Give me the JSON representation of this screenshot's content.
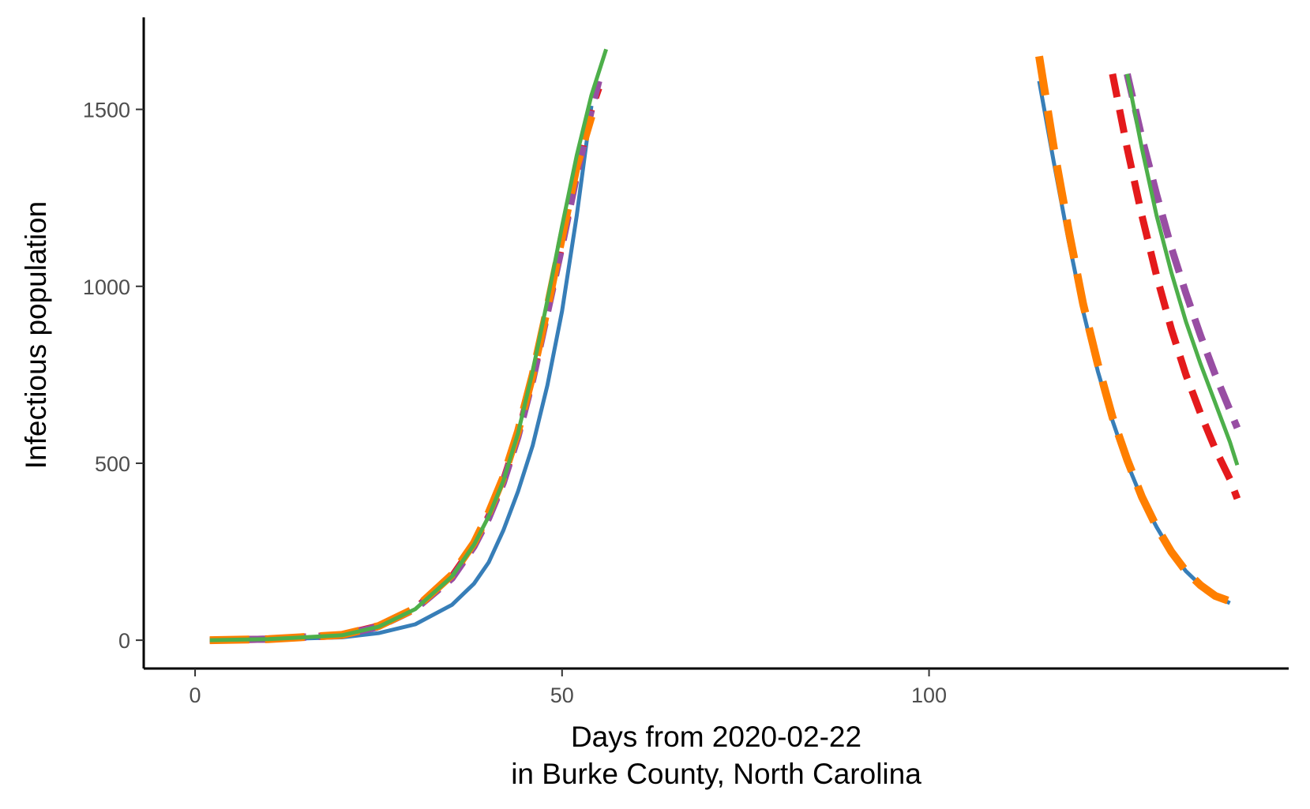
{
  "chart_data": {
    "type": "line",
    "title": "",
    "xlabel_lines": [
      "Days from 2020-02-22",
      "in Burke County, North Carolina"
    ],
    "ylabel": "Infectious population",
    "xlim": [
      -7,
      149
    ],
    "ylim": [
      -80,
      1760
    ],
    "xticks": [
      0,
      50,
      100
    ],
    "yticks": [
      0,
      500,
      1000,
      1500
    ],
    "grid": false,
    "legend": "none",
    "series": [
      {
        "color": "#377eb8",
        "dash": "solid",
        "segments": [
          [
            [
              2,
              0
            ],
            [
              10,
              2
            ],
            [
              20,
              8
            ],
            [
              25,
              20
            ],
            [
              30,
              45
            ],
            [
              35,
              100
            ],
            [
              38,
              160
            ],
            [
              40,
              220
            ],
            [
              42,
              310
            ],
            [
              44,
              420
            ],
            [
              46,
              550
            ],
            [
              48,
              720
            ],
            [
              50,
              930
            ],
            [
              52,
              1200
            ],
            [
              54,
              1510
            ]
          ],
          [
            [
              115,
              1580
            ],
            [
              117,
              1350
            ],
            [
              119,
              1130
            ],
            [
              121,
              930
            ],
            [
              123,
              760
            ],
            [
              125,
              620
            ],
            [
              127,
              500
            ],
            [
              129,
              400
            ],
            [
              131,
              320
            ],
            [
              133,
              250
            ],
            [
              135,
              195
            ],
            [
              137,
              155
            ],
            [
              139,
              125
            ],
            [
              141,
              105
            ]
          ]
        ]
      },
      {
        "color": "#e41a1c",
        "dash": "dashed",
        "segments": [
          [
            [
              2,
              0
            ],
            [
              10,
              3
            ],
            [
              20,
              15
            ],
            [
              25,
              40
            ],
            [
              30,
              90
            ],
            [
              35,
              180
            ],
            [
              38,
              270
            ],
            [
              40,
              350
            ],
            [
              42,
              450
            ],
            [
              44,
              580
            ],
            [
              46,
              740
            ],
            [
              48,
              930
            ],
            [
              50,
              1120
            ],
            [
              52,
              1320
            ],
            [
              54,
              1500
            ],
            [
              55,
              1560
            ]
          ],
          [
            [
              125,
              1600
            ],
            [
              127,
              1390
            ],
            [
              129,
              1200
            ],
            [
              131,
              1030
            ],
            [
              133,
              880
            ],
            [
              135,
              750
            ],
            [
              137,
              640
            ],
            [
              139,
              540
            ],
            [
              141,
              455
            ],
            [
              142,
              400
            ]
          ]
        ]
      },
      {
        "color": "#984ea3",
        "dash": "dashed",
        "segments": [
          [
            [
              2,
              0
            ],
            [
              10,
              3
            ],
            [
              20,
              14
            ],
            [
              25,
              38
            ],
            [
              30,
              88
            ],
            [
              35,
              175
            ],
            [
              38,
              265
            ],
            [
              40,
              345
            ],
            [
              42,
              445
            ],
            [
              44,
              575
            ],
            [
              46,
              735
            ],
            [
              48,
              925
            ],
            [
              50,
              1115
            ],
            [
              52,
              1315
            ],
            [
              54,
              1500
            ],
            [
              55,
              1580
            ]
          ],
          [
            [
              127,
              1600
            ],
            [
              129,
              1420
            ],
            [
              131,
              1260
            ],
            [
              133,
              1110
            ],
            [
              135,
              980
            ],
            [
              137,
              860
            ],
            [
              139,
              750
            ],
            [
              141,
              650
            ],
            [
              142,
              600
            ]
          ]
        ]
      },
      {
        "color": "#ff7f00",
        "dash": "longdash",
        "segments": [
          [
            [
              2,
              0
            ],
            [
              10,
              3
            ],
            [
              20,
              15
            ],
            [
              25,
              40
            ],
            [
              30,
              90
            ],
            [
              35,
              185
            ],
            [
              38,
              275
            ],
            [
              40,
              360
            ],
            [
              42,
              460
            ],
            [
              44,
              590
            ],
            [
              46,
              750
            ],
            [
              48,
              940
            ],
            [
              50,
              1140
            ],
            [
              52,
              1340
            ],
            [
              54,
              1480
            ]
          ],
          [
            [
              115,
              1650
            ],
            [
              117,
              1390
            ],
            [
              119,
              1160
            ],
            [
              121,
              950
            ],
            [
              123,
              780
            ],
            [
              125,
              630
            ],
            [
              127,
              510
            ],
            [
              129,
              405
            ],
            [
              131,
              320
            ],
            [
              133,
              250
            ],
            [
              135,
              195
            ],
            [
              137,
              155
            ],
            [
              139,
              125
            ],
            [
              141,
              110
            ]
          ]
        ]
      },
      {
        "color": "#4daf4a",
        "dash": "solid",
        "segments": [
          [
            [
              2,
              0
            ],
            [
              10,
              3
            ],
            [
              20,
              14
            ],
            [
              25,
              38
            ],
            [
              30,
              88
            ],
            [
              35,
              180
            ],
            [
              38,
              270
            ],
            [
              40,
              350
            ],
            [
              42,
              450
            ],
            [
              44,
              585
            ],
            [
              46,
              760
            ],
            [
              48,
              960
            ],
            [
              50,
              1170
            ],
            [
              52,
              1370
            ],
            [
              54,
              1540
            ],
            [
              56,
              1670
            ]
          ],
          [
            [
              127,
              1600
            ],
            [
              129,
              1390
            ],
            [
              131,
              1200
            ],
            [
              133,
              1040
            ],
            [
              135,
              900
            ],
            [
              137,
              780
            ],
            [
              139,
              670
            ],
            [
              141,
              560
            ],
            [
              142,
              495
            ]
          ]
        ]
      }
    ]
  }
}
